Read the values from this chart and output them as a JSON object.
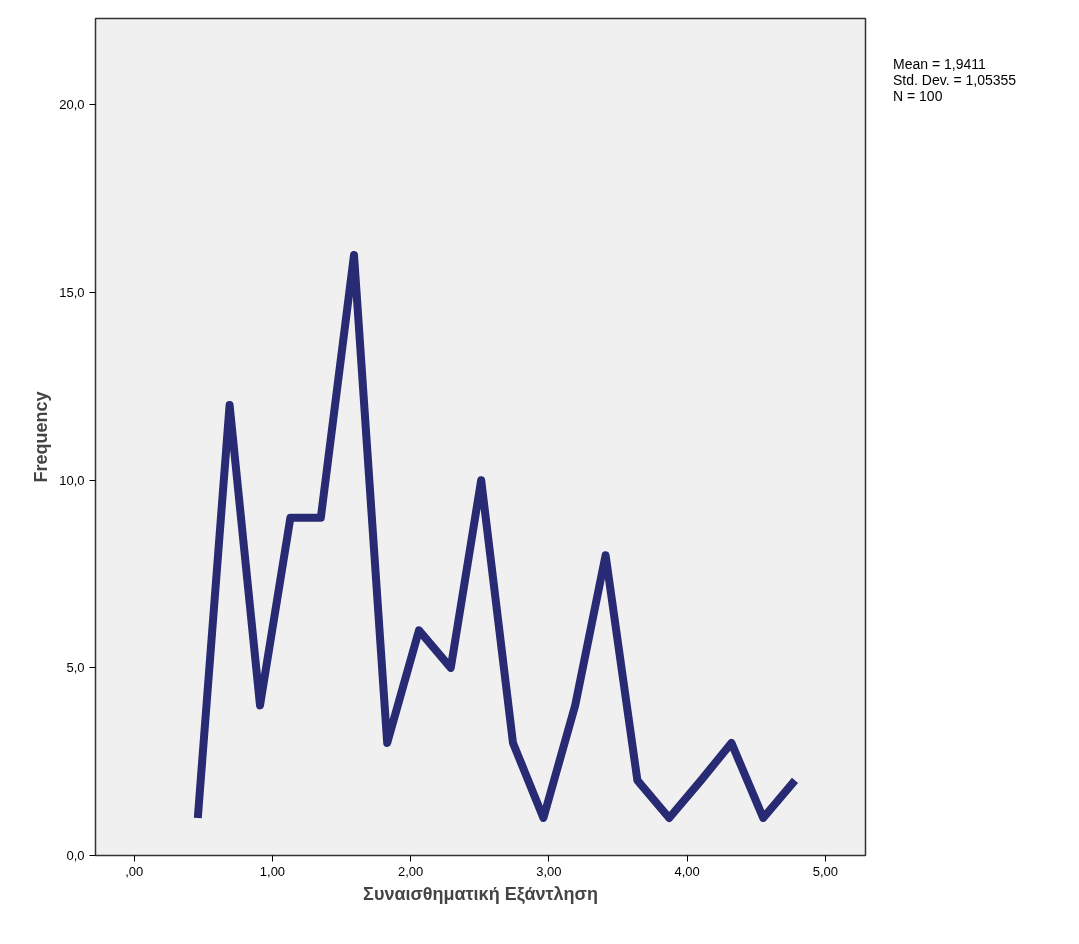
{
  "chart_data": {
    "type": "line",
    "xlabel": "Συναισθηματική Εξάντληση",
    "ylabel": "Frequency",
    "x": [
      0.46,
      0.69,
      0.91,
      1.13,
      1.35,
      1.59,
      1.83,
      2.06,
      2.29,
      2.51,
      2.74,
      2.96,
      3.19,
      3.41,
      3.64,
      3.87,
      4.1,
      4.32,
      4.55,
      4.78
    ],
    "series": [
      {
        "color": "#282a74",
        "values": [
          1,
          12,
          4,
          9,
          9,
          16,
          3,
          6,
          5,
          10,
          3,
          1,
          4,
          8,
          2,
          1,
          2,
          3,
          1,
          2
        ]
      }
    ],
    "xlim": [
      -0.28,
      5.29
    ],
    "ylim": [
      0,
      22.3
    ],
    "xticks": [
      {
        "value": 0,
        "label": ",00"
      },
      {
        "value": 1,
        "label": "1,00"
      },
      {
        "value": 2,
        "label": "2,00"
      },
      {
        "value": 3,
        "label": "3,00"
      },
      {
        "value": 4,
        "label": "4,00"
      },
      {
        "value": 5,
        "label": "5,00"
      }
    ],
    "yticks": [
      {
        "value": 0,
        "label": "0,0"
      },
      {
        "value": 5,
        "label": "5,0"
      },
      {
        "value": 10,
        "label": "10,0"
      },
      {
        "value": 15,
        "label": "15,0"
      },
      {
        "value": 20,
        "label": "20,0"
      }
    ],
    "annotations": [
      "Mean = 1,9411",
      "Std. Dev. = 1,05355",
      "N = 100"
    ],
    "grid": false,
    "marker": "none",
    "line_style": "solid"
  }
}
